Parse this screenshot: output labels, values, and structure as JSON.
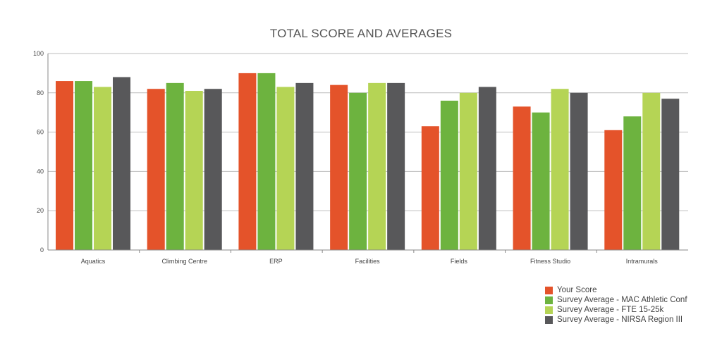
{
  "chart_data": {
    "type": "bar",
    "title": "TOTAL SCORE AND AVERAGES",
    "xlabel": "",
    "ylabel": "",
    "categories": [
      "Aquatics",
      "Climbing Centre",
      "ERP",
      "Facilities",
      "Fields",
      "Fitness Studio",
      "Intramurals"
    ],
    "series": [
      {
        "name": "Your Score",
        "color": "#e4532a",
        "values": [
          86,
          82,
          90,
          84,
          63,
          73,
          61
        ]
      },
      {
        "name": "Survey Average - MAC Athletic Conf",
        "color": "#6db33f",
        "values": [
          86,
          85,
          90,
          80,
          76,
          70,
          68
        ]
      },
      {
        "name": "Survey Average - FTE 15-25k",
        "color": "#b5d455",
        "values": [
          83,
          81,
          83,
          85,
          80,
          82,
          80
        ]
      },
      {
        "name": "Survey Average - NIRSA Region III",
        "color": "#58585a",
        "values": [
          88,
          82,
          85,
          85,
          83,
          80,
          77
        ]
      }
    ],
    "ylim": [
      0,
      100
    ],
    "yticks": [
      0,
      20,
      40,
      60,
      80,
      100
    ],
    "grid": true,
    "legend": "bottom-right"
  }
}
